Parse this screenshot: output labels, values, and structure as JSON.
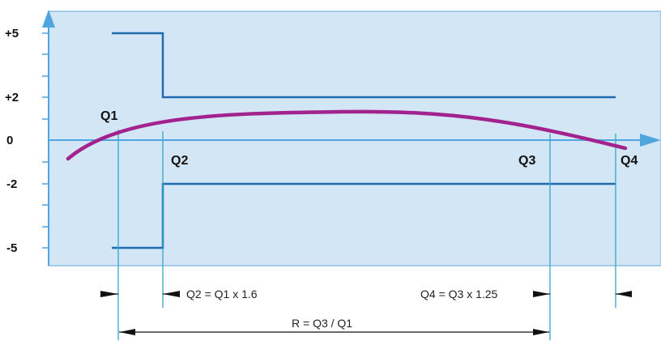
{
  "colors": {
    "panel_fill": "#d3e6f6",
    "panel_stroke": "#8cbfe3",
    "axis": "#4fa6de",
    "step_line": "#1e6bb0",
    "curve": "#a3238e",
    "guide_line": "#35a8c8",
    "dimension": "#111111"
  },
  "y_ticks": [
    {
      "label": "+5",
      "value": 5
    },
    {
      "label": "+2",
      "value": 2
    },
    {
      "label": "0",
      "value": 0
    },
    {
      "label": "-2",
      "value": -2
    },
    {
      "label": "-5",
      "value": -5
    }
  ],
  "q_labels": [
    "Q1",
    "Q2",
    "Q3",
    "Q4"
  ],
  "formulas": {
    "q2": "Q2 = Q1 x 1.6",
    "q4": "Q4 = Q3 x 1.25",
    "r": "R = Q3 / Q1"
  }
}
